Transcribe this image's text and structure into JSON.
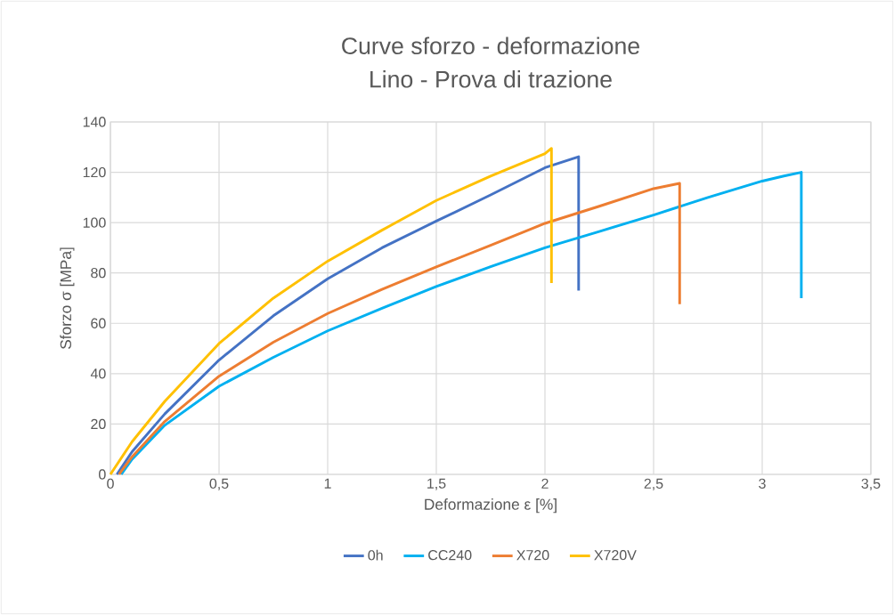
{
  "chart_data": {
    "type": "line",
    "title": "Curve sforzo - deformazione",
    "subtitle": "Lino - Prova di trazione",
    "xlabel": "Deformazione ε [%]",
    "ylabel": "Sforzo σ [MPa]",
    "xlim": [
      0,
      3.5
    ],
    "ylim": [
      0,
      140
    ],
    "xticks": [
      0,
      {
        "value": 0.5,
        "label": "0,5"
      },
      1,
      {
        "value": 1.5,
        "label": "1,5"
      },
      2,
      {
        "value": 2.5,
        "label": "2,5"
      },
      3,
      {
        "value": 3.5,
        "label": "3,5"
      }
    ],
    "yticks": [
      0,
      20,
      40,
      60,
      80,
      100,
      120,
      140
    ],
    "grid": true,
    "legend": "bottom",
    "marker": "none",
    "line_style": "solid",
    "series": [
      {
        "name": "0h",
        "color": "#4472c4",
        "x": [
          0.03,
          0.1,
          0.25,
          0.5,
          0.75,
          1.0,
          1.25,
          1.5,
          1.75,
          2.0,
          2.155,
          2.155
        ],
        "values": [
          0,
          9,
          24,
          45.4,
          63,
          77.7,
          90,
          100.6,
          111,
          121.8,
          126.2,
          73
        ]
      },
      {
        "name": "CC240",
        "color": "#00b0f0",
        "x": [
          0.05,
          0.1,
          0.25,
          0.5,
          0.75,
          1.0,
          1.25,
          1.5,
          1.75,
          2.0,
          2.25,
          2.5,
          2.75,
          3.0,
          3.1,
          3.18,
          3.18
        ],
        "values": [
          0,
          6,
          19.5,
          35,
          46.5,
          57,
          66,
          74.6,
          82.5,
          90,
          96.5,
          103,
          110,
          116.5,
          118.5,
          120,
          70
        ]
      },
      {
        "name": "X720",
        "color": "#ed7d31",
        "x": [
          0.04,
          0.1,
          0.25,
          0.5,
          0.75,
          1.0,
          1.25,
          1.5,
          1.75,
          2.0,
          2.25,
          2.5,
          2.62,
          2.62
        ],
        "values": [
          0,
          7,
          21,
          39,
          52.5,
          63.9,
          73.5,
          82.4,
          91,
          99.7,
          106.5,
          113.5,
          115.6,
          67.6
        ]
      },
      {
        "name": "X720V",
        "color": "#ffc000",
        "x": [
          0,
          0.1,
          0.25,
          0.5,
          0.75,
          1.0,
          1.25,
          1.5,
          1.75,
          2.0,
          2.03,
          2.03
        ],
        "values": [
          0,
          13,
          29,
          52,
          70,
          84.7,
          97,
          108.8,
          118.5,
          127.4,
          129.5,
          76
        ]
      }
    ]
  }
}
